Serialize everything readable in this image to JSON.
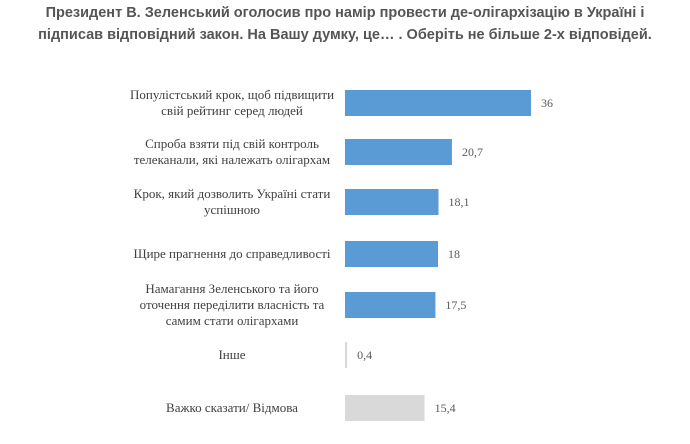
{
  "chart_data": {
    "type": "bar",
    "orientation": "horizontal",
    "title": "Президент В. Зеленський оголосив про намір провести де-олігархізацію в Україні і\nпідписав відповідний закон. На Вашу думку, це… . Оберіть не більше 2-х відповідей.",
    "categories": [
      "Популістський крок, щоб підвищити\nсвій рейтинг серед людей",
      "Спроба взяти під свій контроль\nтелеканали, які належать олігархам",
      "Крок, який дозволить Україні стати\nуспішною",
      "Щире прагнення до справедливості",
      "Намагання Зеленського та його\nоточення переділити власність та\nсамим стати олігархами",
      "Інше",
      "Важко сказати/ Відмова"
    ],
    "values": [
      36,
      20.7,
      18.1,
      18,
      17.5,
      0.4,
      15.4
    ],
    "value_labels": [
      "36",
      "20,7",
      "18,1",
      "18",
      "17,5",
      "0,4",
      "15,4"
    ],
    "colors": [
      "#5b9bd5",
      "#5b9bd5",
      "#5b9bd5",
      "#5b9bd5",
      "#5b9bd5",
      "#d9d9d9",
      "#d9d9d9"
    ]
  }
}
